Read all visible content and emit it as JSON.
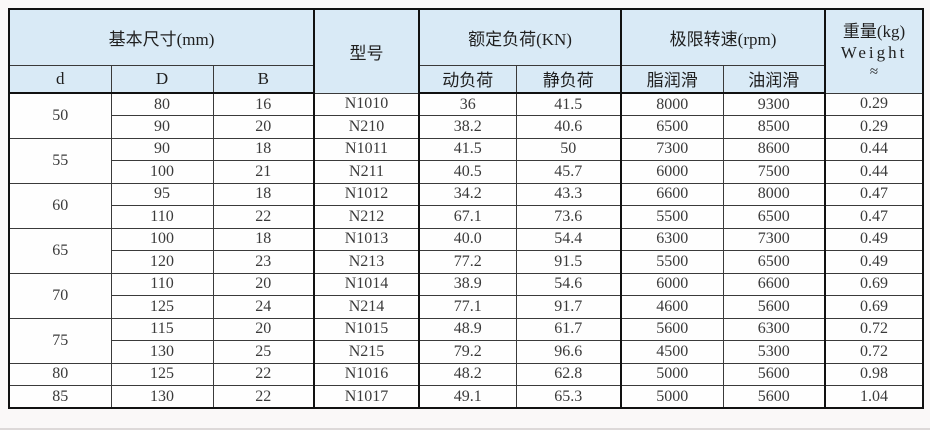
{
  "colors": {
    "header_bg": "#d9eaf6",
    "row_bg": "#fefefe",
    "page_bg": "#faf8f8",
    "border": "#111111",
    "text": "#2f2f2f"
  },
  "table": {
    "header": {
      "basic_dims": "基本尺寸(mm)",
      "model": "型号",
      "rated_load": "额定负荷(KN)",
      "limit_speed": "极限转速(rpm)",
      "weight_line1": "重量(kg)",
      "weight_line2": "Weight",
      "weight_line3": "≈",
      "sub": [
        "d",
        "D",
        "B",
        "动负荷",
        "静负荷",
        "脂润滑",
        "油润滑"
      ]
    },
    "columns": [
      "d",
      "D",
      "B",
      "model",
      "dynamic_load",
      "static_load",
      "grease_speed",
      "oil_speed",
      "weight"
    ],
    "groups": [
      {
        "d": "50",
        "rows": [
          [
            "80",
            "16",
            "N1010",
            "36",
            "41.5",
            "8000",
            "9300",
            "0.29"
          ],
          [
            "90",
            "20",
            "N210",
            "38.2",
            "40.6",
            "6500",
            "8500",
            "0.29"
          ]
        ]
      },
      {
        "d": "55",
        "rows": [
          [
            "90",
            "18",
            "N1011",
            "41.5",
            "50",
            "7300",
            "8600",
            "0.44"
          ],
          [
            "100",
            "21",
            "N211",
            "40.5",
            "45.7",
            "6000",
            "7500",
            "0.44"
          ]
        ]
      },
      {
        "d": "60",
        "rows": [
          [
            "95",
            "18",
            "N1012",
            "34.2",
            "43.3",
            "6600",
            "8000",
            "0.47"
          ],
          [
            "110",
            "22",
            "N212",
            "67.1",
            "73.6",
            "5500",
            "6500",
            "0.47"
          ]
        ]
      },
      {
        "d": "65",
        "rows": [
          [
            "100",
            "18",
            "N1013",
            "40.0",
            "54.4",
            "6300",
            "7300",
            "0.49"
          ],
          [
            "120",
            "23",
            "N213",
            "77.2",
            "91.5",
            "5500",
            "6500",
            "0.49"
          ]
        ]
      },
      {
        "d": "70",
        "rows": [
          [
            "110",
            "20",
            "N1014",
            "38.9",
            "54.6",
            "6000",
            "6600",
            "0.69"
          ],
          [
            "125",
            "24",
            "N214",
            "77.1",
            "91.7",
            "4600",
            "5600",
            "0.69"
          ]
        ]
      },
      {
        "d": "75",
        "rows": [
          [
            "115",
            "20",
            "N1015",
            "48.9",
            "61.7",
            "5600",
            "6300",
            "0.72"
          ],
          [
            "130",
            "25",
            "N215",
            "79.2",
            "96.6",
            "4500",
            "5300",
            "0.72"
          ]
        ]
      },
      {
        "d": "80",
        "rows": [
          [
            "125",
            "22",
            "N1016",
            "48.2",
            "62.8",
            "5000",
            "5600",
            "0.98"
          ]
        ]
      },
      {
        "d": "85",
        "rows": [
          [
            "130",
            "22",
            "N1017",
            "49.1",
            "65.3",
            "5000",
            "5600",
            "1.04"
          ]
        ]
      }
    ]
  }
}
